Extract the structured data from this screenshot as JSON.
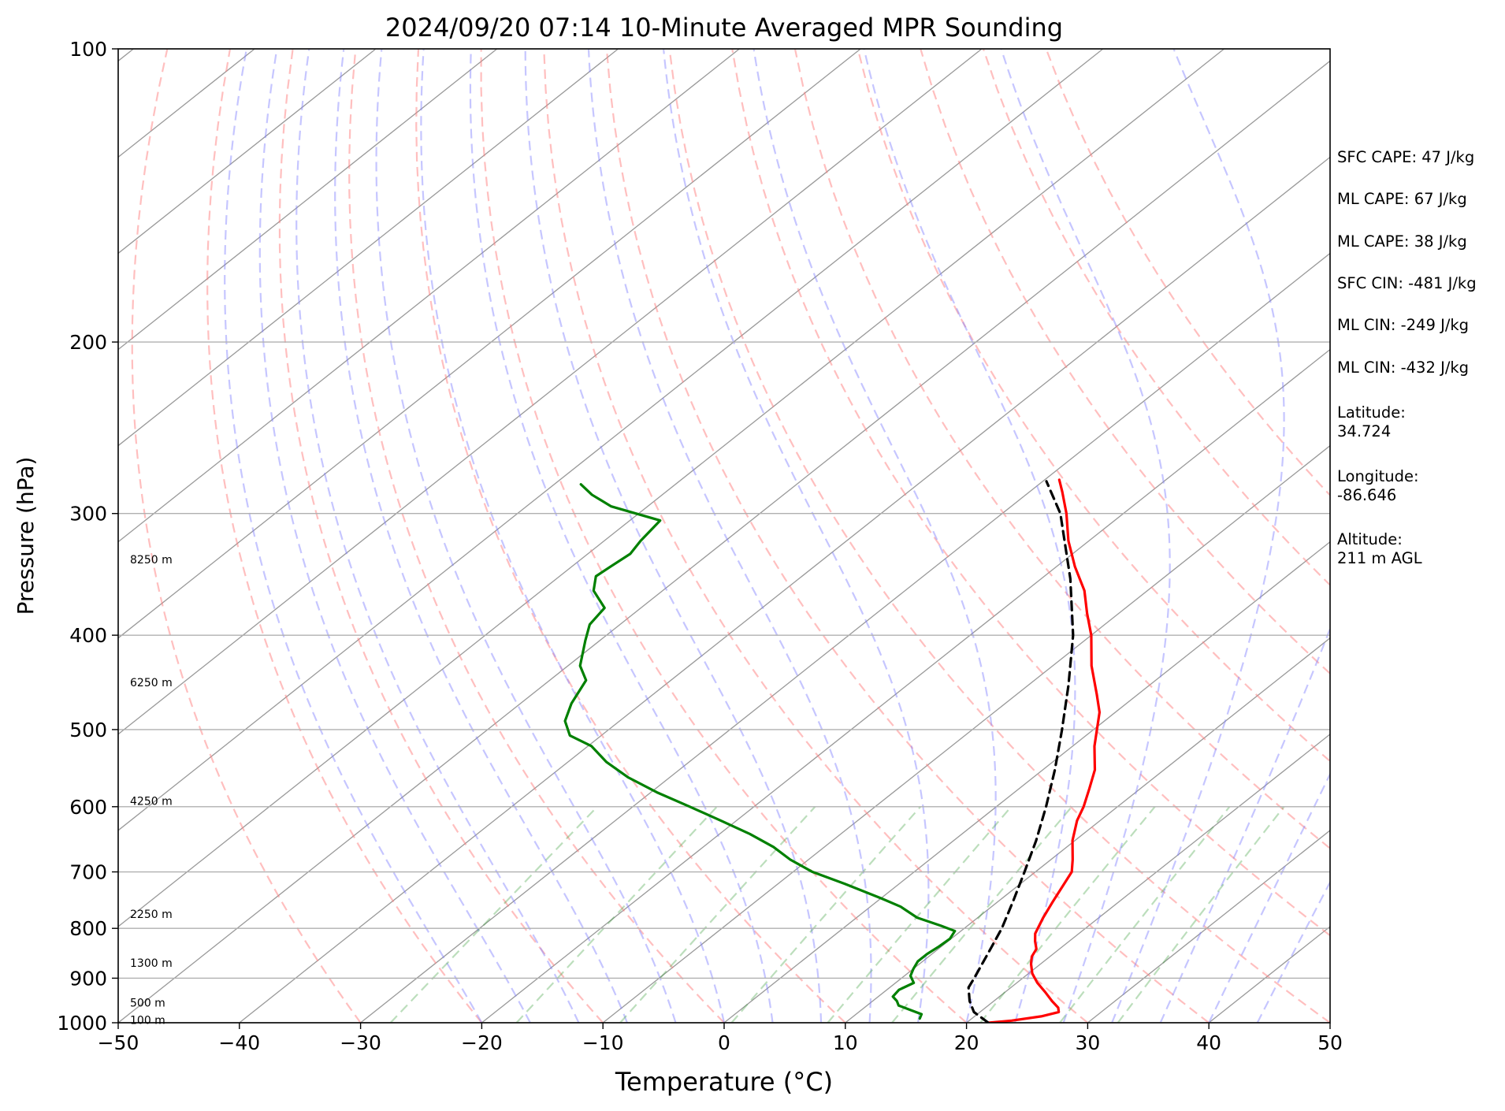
{
  "chart_data": {
    "type": "line",
    "title": "2024/09/20 07:14 10-Minute Averaged MPR Sounding",
    "xlabel": "Temperature (°C)",
    "ylabel": "Pressure (hPa)",
    "xlim": [
      -50,
      50
    ],
    "ylim": [
      1000,
      100
    ],
    "y_scale": "log",
    "grid": true,
    "x_ticks": [
      -50,
      -40,
      -30,
      -20,
      -10,
      0,
      10,
      20,
      30,
      40,
      50
    ],
    "y_ticks": [
      100,
      200,
      300,
      400,
      500,
      600,
      700,
      800,
      900,
      1000
    ],
    "x_tick_labels": [
      "−50",
      "−40",
      "−30",
      "−20",
      "−10",
      "0",
      "10",
      "20",
      "30",
      "40",
      "50"
    ],
    "y_tick_labels": [
      "100",
      "200",
      "300",
      "400",
      "500",
      "600",
      "700",
      "800",
      "900",
      "1000"
    ],
    "skew_ratio": 1.26,
    "height_labels": [
      {
        "text": "8250 m",
        "p": 335
      },
      {
        "text": "6250 m",
        "p": 448
      },
      {
        "text": "4250 m",
        "p": 593
      },
      {
        "text": "2250 m",
        "p": 775
      },
      {
        "text": "1300 m",
        "p": 870
      },
      {
        "text": "500 m",
        "p": 955
      },
      {
        "text": "100 m",
        "p": 995
      }
    ],
    "series": [
      {
        "key": "temperature",
        "color": "#ff0000",
        "style": "solid",
        "points": [
          [
            1000,
            21.8
          ],
          [
            995,
            23.5
          ],
          [
            985,
            25.5
          ],
          [
            975,
            26.5
          ],
          [
            965,
            26.0
          ],
          [
            950,
            24.8
          ],
          [
            930,
            23.3
          ],
          [
            910,
            21.7
          ],
          [
            890,
            20.3
          ],
          [
            870,
            19.2
          ],
          [
            855,
            18.5
          ],
          [
            840,
            18.1
          ],
          [
            825,
            17.2
          ],
          [
            810,
            16.4
          ],
          [
            780,
            15.4
          ],
          [
            750,
            14.5
          ],
          [
            700,
            13.0
          ],
          [
            680,
            11.8
          ],
          [
            650,
            9.8
          ],
          [
            620,
            8.1
          ],
          [
            600,
            7.2
          ],
          [
            575,
            5.8
          ],
          [
            550,
            4.3
          ],
          [
            520,
            1.8
          ],
          [
            480,
            -1.3
          ],
          [
            460,
            -3.4
          ],
          [
            430,
            -6.8
          ],
          [
            400,
            -10.0
          ],
          [
            380,
            -12.6
          ],
          [
            360,
            -15.2
          ],
          [
            340,
            -18.5
          ],
          [
            320,
            -21.7
          ],
          [
            300,
            -24.7
          ],
          [
            285,
            -27.3
          ],
          [
            277,
            -28.8
          ]
        ]
      },
      {
        "key": "dewpoint",
        "color": "#008000",
        "style": "solid",
        "points": [
          [
            990,
            15.7
          ],
          [
            980,
            15.4
          ],
          [
            970,
            14.0
          ],
          [
            960,
            12.6
          ],
          [
            950,
            12.0
          ],
          [
            940,
            11.2
          ],
          [
            925,
            11.0
          ],
          [
            910,
            11.5
          ],
          [
            895,
            10.5
          ],
          [
            880,
            10.0
          ],
          [
            865,
            9.6
          ],
          [
            850,
            9.6
          ],
          [
            835,
            9.8
          ],
          [
            820,
            9.9
          ],
          [
            805,
            9.5
          ],
          [
            795,
            7.8
          ],
          [
            780,
            5.0
          ],
          [
            760,
            2.5
          ],
          [
            745,
            0.0
          ],
          [
            720,
            -4.5
          ],
          [
            700,
            -8.4
          ],
          [
            680,
            -11.5
          ],
          [
            660,
            -14.2
          ],
          [
            640,
            -17.5
          ],
          [
            620,
            -21.3
          ],
          [
            600,
            -25.3
          ],
          [
            580,
            -29.5
          ],
          [
            560,
            -33.4
          ],
          [
            540,
            -36.8
          ],
          [
            520,
            -39.7
          ],
          [
            507,
            -42.6
          ],
          [
            490,
            -44.5
          ],
          [
            470,
            -45.8
          ],
          [
            445,
            -47.0
          ],
          [
            430,
            -49.0
          ],
          [
            405,
            -51.2
          ],
          [
            390,
            -52.5
          ],
          [
            375,
            -53.0
          ],
          [
            360,
            -55.7
          ],
          [
            348,
            -57.0
          ],
          [
            340,
            -56.8
          ],
          [
            330,
            -56.5
          ],
          [
            320,
            -57.0
          ],
          [
            305,
            -57.5
          ],
          [
            295,
            -63.0
          ],
          [
            287,
            -65.8
          ],
          [
            280,
            -67.8
          ]
        ]
      },
      {
        "key": "parcel",
        "color": "#000000",
        "style": "dashed",
        "points": [
          [
            1000,
            21.8
          ],
          [
            975,
            19.5
          ],
          [
            950,
            18.0
          ],
          [
            920,
            16.5
          ],
          [
            900,
            16.0
          ],
          [
            850,
            14.6
          ],
          [
            800,
            13.1
          ],
          [
            750,
            11.2
          ],
          [
            700,
            9.1
          ],
          [
            650,
            6.8
          ],
          [
            600,
            4.1
          ],
          [
            550,
            1.0
          ],
          [
            500,
            -2.6
          ],
          [
            450,
            -6.7
          ],
          [
            400,
            -11.5
          ],
          [
            350,
            -17.6
          ],
          [
            300,
            -25.2
          ],
          [
            278,
            -29.7
          ]
        ]
      }
    ],
    "background_lines": {
      "isotherm_color": "#808080",
      "dry_adiabat_color": "#ff8080",
      "moist_adiabat_color": "#8080ff",
      "mixing_ratio_color": "#40a040",
      "dry_adiabats_theta_C": [
        -30,
        -20,
        -10,
        0,
        10,
        20,
        30,
        40,
        50,
        60,
        70,
        80,
        90,
        100,
        110
      ],
      "moist_adiabats_start_C": [
        -20,
        -16,
        -12,
        -8,
        -4,
        0,
        4,
        8,
        12,
        16,
        20,
        24,
        28,
        32,
        36,
        40,
        44
      ],
      "mixing_ratios_gkg": [
        0.4,
        1,
        2,
        4,
        7,
        10,
        16,
        24,
        32
      ]
    }
  },
  "info": [
    "SFC CAPE: 47 J/kg",
    "ML CAPE: 67 J/kg",
    "ML CAPE: 38 J/kg",
    "SFC CIN: -481 J/kg",
    "ML CIN: -249 J/kg",
    "ML CIN: -432 J/kg",
    "Latitude:",
    "34.724",
    "Longitude:",
    "-86.646",
    "Altitude:",
    "211 m AGL"
  ]
}
